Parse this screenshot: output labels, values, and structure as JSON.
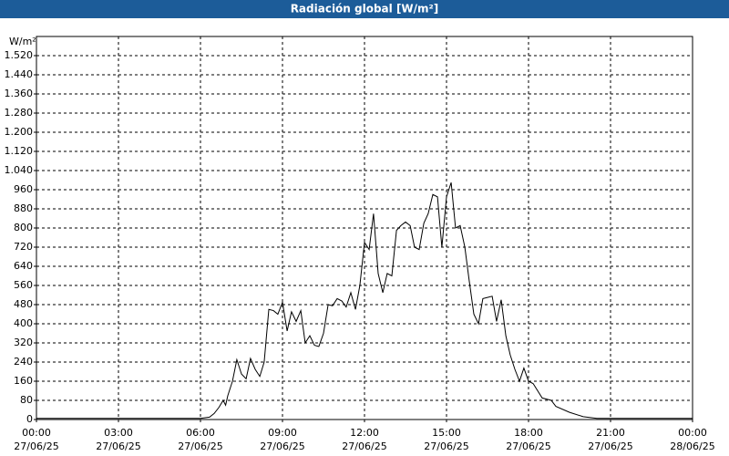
{
  "chart_data": {
    "type": "line",
    "title": "Radiación global [W/m²]",
    "y_label": "W/m²",
    "color": "#000000",
    "grid": true,
    "xlim": [
      0,
      24
    ],
    "ylim": [
      0,
      1600
    ],
    "xticks": [
      {
        "value": 0,
        "label": "00:00",
        "date": "27/06/25"
      },
      {
        "value": 3,
        "label": "03:00",
        "date": "27/06/25"
      },
      {
        "value": 6,
        "label": "06:00",
        "date": "27/06/25"
      },
      {
        "value": 9,
        "label": "09:00",
        "date": "27/06/25"
      },
      {
        "value": 12,
        "label": "12:00",
        "date": "27/06/25"
      },
      {
        "value": 15,
        "label": "15:00",
        "date": "27/06/25"
      },
      {
        "value": 18,
        "label": "18:00",
        "date": "27/06/25"
      },
      {
        "value": 21,
        "label": "21:00",
        "date": "27/06/25"
      },
      {
        "value": 24,
        "label": "00:00",
        "date": "28/06/25"
      }
    ],
    "yticks": [
      0,
      80,
      160,
      240,
      320,
      400,
      480,
      560,
      640,
      720,
      800,
      880,
      960,
      {
        "value": 1040,
        "label": "1.040"
      },
      {
        "value": 1120,
        "label": "1.120"
      },
      {
        "value": 1200,
        "label": "1.200"
      },
      {
        "value": 1280,
        "label": "1.280"
      },
      {
        "value": 1360,
        "label": "1.360"
      },
      {
        "value": 1440,
        "label": "1.440"
      },
      {
        "value": 1520,
        "label": "1.520"
      }
    ],
    "x": [
      0,
      6.0,
      6.33,
      6.5,
      6.67,
      6.83,
      6.92,
      7.0,
      7.17,
      7.33,
      7.5,
      7.67,
      7.83,
      8.0,
      8.17,
      8.33,
      8.5,
      8.67,
      8.83,
      9.0,
      9.17,
      9.33,
      9.5,
      9.67,
      9.83,
      10.0,
      10.17,
      10.33,
      10.5,
      10.67,
      10.83,
      11.0,
      11.17,
      11.33,
      11.5,
      11.67,
      11.83,
      12.0,
      12.17,
      12.33,
      12.5,
      12.67,
      12.83,
      13.0,
      13.17,
      13.33,
      13.5,
      13.67,
      13.83,
      14.0,
      14.17,
      14.33,
      14.5,
      14.67,
      14.83,
      15.0,
      15.17,
      15.33,
      15.5,
      15.67,
      15.83,
      16.0,
      16.17,
      16.33,
      16.5,
      16.67,
      16.83,
      17.0,
      17.17,
      17.33,
      17.5,
      17.67,
      17.83,
      18.0,
      18.17,
      18.5,
      18.83,
      19.0,
      19.5,
      20.0,
      20.5,
      24
    ],
    "values": [
      5,
      5,
      10,
      25,
      50,
      80,
      60,
      100,
      160,
      250,
      190,
      170,
      255,
      210,
      180,
      240,
      460,
      455,
      440,
      490,
      370,
      450,
      410,
      455,
      320,
      350,
      310,
      305,
      360,
      480,
      475,
      505,
      495,
      470,
      530,
      460,
      560,
      740,
      710,
      860,
      610,
      530,
      610,
      600,
      790,
      810,
      825,
      810,
      720,
      710,
      820,
      860,
      940,
      930,
      720,
      930,
      990,
      800,
      810,
      720,
      580,
      440,
      400,
      505,
      510,
      515,
      410,
      500,
      350,
      270,
      210,
      160,
      215,
      160,
      150,
      90,
      80,
      55,
      30,
      12,
      5,
      5
    ]
  }
}
